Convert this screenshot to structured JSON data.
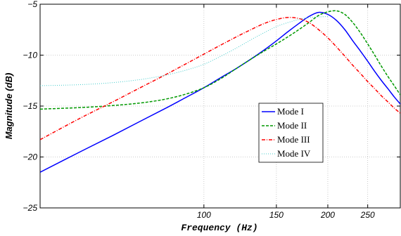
{
  "chart_data": {
    "type": "line",
    "title": "",
    "xlabel": "Frequency  (Hz)",
    "ylabel": "Magnitude (dB)",
    "xscale": "log",
    "xlim": [
      40,
      300
    ],
    "ylim": [
      -25,
      -5
    ],
    "xticks": [
      100,
      150,
      200,
      250
    ],
    "xtick_labels": [
      "100",
      "150",
      "200",
      "250"
    ],
    "yticks": [
      -25,
      -20,
      -15,
      -10,
      -5
    ],
    "ytick_labels": [
      "−25",
      "−20",
      "−15",
      "−10",
      "−5"
    ],
    "grid": true,
    "legend_position": "center-right",
    "series": [
      {
        "name": "Mode I",
        "color": "#0000ff",
        "dash": "solid",
        "x": [
          40,
          50,
          60,
          70,
          80,
          90,
          100,
          110,
          120,
          130,
          140,
          150,
          160,
          170,
          180,
          190,
          200,
          210,
          220,
          230,
          240,
          250,
          260,
          270,
          280,
          290,
          300
        ],
        "y": [
          -21.5,
          -19.5,
          -17.9,
          -16.5,
          -15.3,
          -14.2,
          -13.2,
          -12.2,
          -11.3,
          -10.4,
          -9.5,
          -8.6,
          -7.7,
          -6.9,
          -6.2,
          -5.8,
          -6.0,
          -6.6,
          -7.5,
          -8.6,
          -9.6,
          -10.6,
          -11.6,
          -12.5,
          -13.3,
          -14.1,
          -14.8
        ]
      },
      {
        "name": "Mode II",
        "color": "#009900",
        "dash": "dashed",
        "x": [
          40,
          50,
          60,
          70,
          80,
          90,
          100,
          110,
          120,
          130,
          140,
          150,
          160,
          170,
          180,
          190,
          200,
          210,
          220,
          230,
          240,
          250,
          260,
          270,
          280,
          290,
          300
        ],
        "y": [
          -15.3,
          -15.15,
          -14.95,
          -14.7,
          -14.35,
          -13.85,
          -13.2,
          -12.3,
          -11.3,
          -10.4,
          -9.6,
          -8.9,
          -8.2,
          -7.5,
          -6.8,
          -6.1,
          -5.75,
          -5.65,
          -6.0,
          -6.8,
          -7.8,
          -8.9,
          -10.0,
          -11.1,
          -12.1,
          -13.0,
          -13.9
        ]
      },
      {
        "name": "Mode III",
        "color": "#ff0000",
        "dash": "dashdot",
        "x": [
          40,
          50,
          60,
          70,
          80,
          90,
          100,
          110,
          120,
          130,
          140,
          150,
          160,
          170,
          180,
          190,
          200,
          210,
          220,
          230,
          240,
          250,
          260,
          270,
          280,
          290,
          300
        ],
        "y": [
          -18.3,
          -16.2,
          -14.6,
          -13.2,
          -12.0,
          -10.9,
          -9.9,
          -9.0,
          -8.2,
          -7.5,
          -6.9,
          -6.5,
          -6.3,
          -6.4,
          -6.8,
          -7.5,
          -8.3,
          -9.2,
          -10.1,
          -11.0,
          -11.8,
          -12.6,
          -13.3,
          -14.0,
          -14.6,
          -15.2,
          -15.7
        ]
      },
      {
        "name": "Mode IV",
        "color": "#44cccc",
        "dash": "dotted",
        "x": [
          40,
          50,
          60,
          70,
          80,
          90,
          100,
          110,
          120,
          130,
          140,
          150,
          160,
          170,
          180,
          190,
          200
        ],
        "y": [
          -13.0,
          -12.9,
          -12.7,
          -12.4,
          -12.0,
          -11.5,
          -10.9,
          -10.1,
          -9.3,
          -8.5,
          -7.8,
          -7.2,
          -6.8,
          -6.5,
          -6.3,
          -6.25,
          -6.2
        ]
      }
    ]
  }
}
